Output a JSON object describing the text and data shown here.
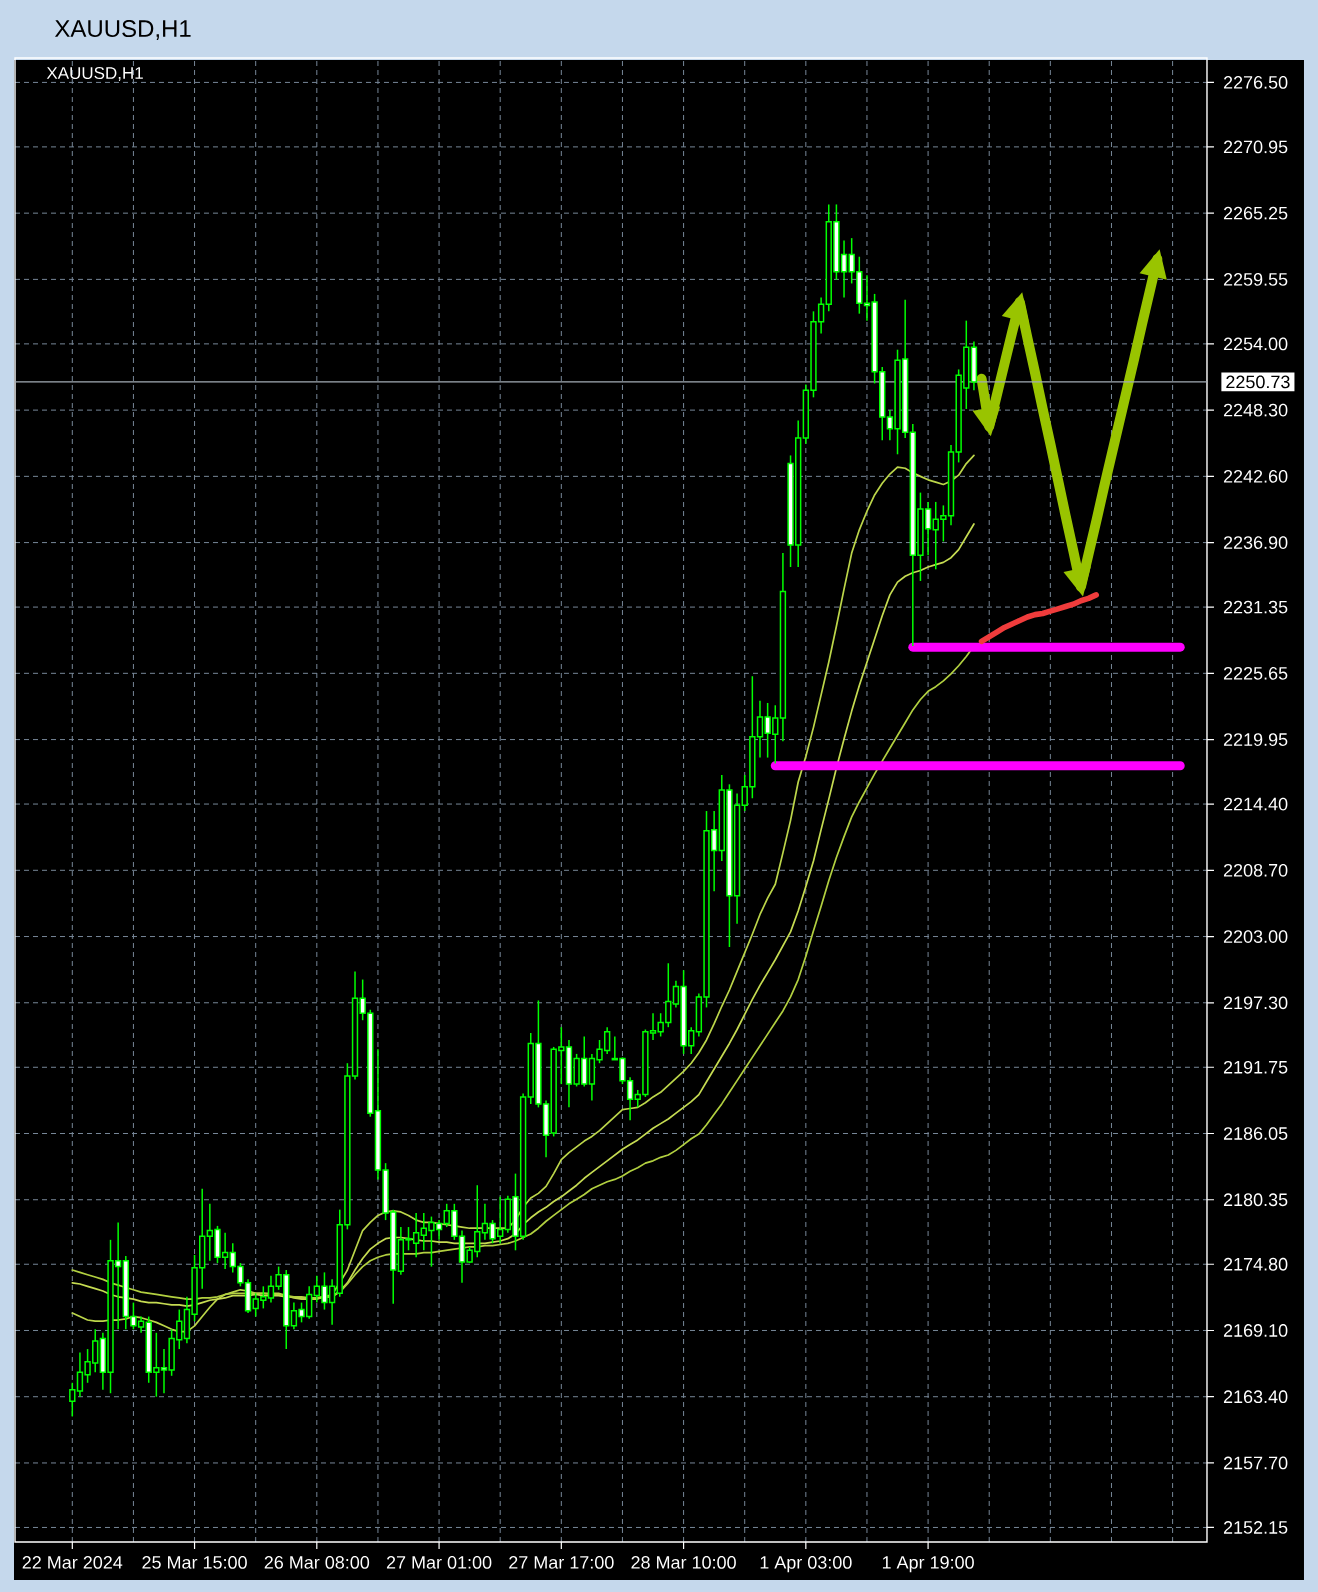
{
  "chart_data": {
    "type": "candlestick",
    "title": "XAUUSD,H1",
    "subtitle": "XAUUSD,H1",
    "color": "#00ff00",
    "categories": [
      "22 Mar 2024",
      null,
      null,
      null,
      null,
      null,
      null,
      null,
      null,
      null,
      null,
      null,
      null,
      null,
      null,
      null,
      "25 Mar 15:00",
      null,
      null,
      null,
      null,
      null,
      null,
      null,
      null,
      null,
      null,
      null,
      null,
      null,
      null,
      null,
      "26 Mar 08:00",
      null,
      null,
      null,
      null,
      null,
      null,
      null,
      null,
      null,
      null,
      null,
      null,
      null,
      null,
      null,
      "27 Mar 01:00",
      null,
      null,
      null,
      null,
      null,
      null,
      null,
      null,
      null,
      null,
      null,
      null,
      null,
      null,
      null,
      "27 Mar 17:00",
      null,
      null,
      null,
      null,
      null,
      null,
      null,
      null,
      null,
      null,
      null,
      null,
      null,
      null,
      null,
      "28 Mar 10:00",
      null,
      null,
      null,
      null,
      null,
      null,
      null,
      null,
      null,
      null,
      null,
      null,
      null,
      null,
      null,
      "1 Apr 03:00",
      null,
      null,
      null,
      null,
      null,
      null,
      null,
      null,
      null,
      null,
      null,
      null,
      null,
      null,
      null,
      "1 Apr 19:00",
      null,
      null,
      null,
      null,
      null,
      null,
      null,
      null,
      null,
      null,
      null,
      null,
      null,
      null,
      null,
      null,
      null,
      null,
      null,
      null,
      null,
      null,
      null,
      null,
      null,
      null,
      null,
      null,
      null,
      null,
      null,
      null,
      null,
      null,
      null,
      null
    ],
    "ohlc": [
      [
        2163.0,
        2164.6,
        2161.7,
        2164.0
      ],
      [
        2163.9,
        2167.2,
        2163.4,
        2165.5
      ],
      [
        2165.3,
        2167.5,
        2164.6,
        2166.4
      ],
      [
        2166.3,
        2169.2,
        2165.5,
        2168.2
      ],
      [
        2168.4,
        2168.9,
        2164.0,
        2165.5
      ],
      [
        2165.5,
        2176.9,
        2163.7,
        2175.1
      ],
      [
        2175.1,
        2178.4,
        2169.2,
        2174.6
      ],
      [
        2175.1,
        2175.5,
        2169.2,
        2170.3
      ],
      [
        2170.3,
        2171.5,
        2169.2,
        2169.5
      ],
      [
        2169.4,
        2170.3,
        2168.9,
        2169.9
      ],
      [
        2169.8,
        2170.3,
        2164.6,
        2165.5
      ],
      [
        2165.5,
        2168.9,
        2163.4,
        2165.9
      ],
      [
        2165.9,
        2167.5,
        2163.7,
        2165.7
      ],
      [
        2165.7,
        2169.2,
        2165.2,
        2168.4
      ],
      [
        2168.3,
        2170.9,
        2167.5,
        2169.9
      ],
      [
        2168.4,
        2172.0,
        2168.0,
        2170.9
      ],
      [
        2170.5,
        2175.6,
        2169.9,
        2174.5
      ],
      [
        2174.5,
        2181.3,
        2172.7,
        2177.2
      ],
      [
        2177.2,
        2180.0,
        2175.1,
        2177.7
      ],
      [
        2177.8,
        2178.1,
        2174.9,
        2175.4
      ],
      [
        2175.4,
        2177.5,
        2174.4,
        2175.8
      ],
      [
        2175.8,
        2176.6,
        2174.1,
        2174.6
      ],
      [
        2174.6,
        2174.9,
        2172.9,
        2173.2
      ],
      [
        2173.2,
        2173.5,
        2170.6,
        2170.8
      ],
      [
        2171.0,
        2172.3,
        2170.3,
        2171.8
      ],
      [
        2171.7,
        2172.9,
        2171.0,
        2172.0
      ],
      [
        2171.9,
        2173.8,
        2171.5,
        2172.9
      ],
      [
        2172.9,
        2174.6,
        2172.6,
        2173.9
      ],
      [
        2173.9,
        2174.3,
        2167.5,
        2169.5
      ],
      [
        2169.5,
        2171.5,
        2169.2,
        2170.8
      ],
      [
        2170.9,
        2171.5,
        2169.8,
        2170.3
      ],
      [
        2170.3,
        2172.9,
        2170.1,
        2172.2
      ],
      [
        2172.1,
        2173.8,
        2171.5,
        2172.9
      ],
      [
        2172.9,
        2174.1,
        2170.9,
        2171.5
      ],
      [
        2171.5,
        2173.5,
        2169.6,
        2172.9
      ],
      [
        2172.3,
        2179.5,
        2172.0,
        2178.2
      ],
      [
        2178.2,
        2192.1,
        2177.8,
        2191.0
      ],
      [
        2191.0,
        2200.0,
        2190.7,
        2197.7
      ],
      [
        2197.7,
        2199.3,
        2195.8,
        2196.4
      ],
      [
        2196.4,
        2196.7,
        2187.5,
        2187.8
      ],
      [
        2188.0,
        2193.3,
        2182.1,
        2182.9
      ],
      [
        2182.9,
        2183.5,
        2178.6,
        2179.2
      ],
      [
        2179.3,
        2179.5,
        2171.4,
        2174.3
      ],
      [
        2174.2,
        2178.0,
        2173.9,
        2176.9
      ],
      [
        2176.9,
        2178.0,
        2176.0,
        2177.0
      ],
      [
        2176.6,
        2179.2,
        2175.4,
        2177.5
      ],
      [
        2177.3,
        2179.2,
        2176.0,
        2177.9
      ],
      [
        2177.7,
        2178.9,
        2174.6,
        2178.4
      ],
      [
        2178.3,
        2178.6,
        2176.9,
        2177.8
      ],
      [
        2178.3,
        2180.0,
        2178.0,
        2179.4
      ],
      [
        2179.4,
        2180.0,
        2176.9,
        2177.2
      ],
      [
        2177.2,
        2177.7,
        2173.2,
        2175.0
      ],
      [
        2175.0,
        2176.3,
        2174.9,
        2176.0
      ],
      [
        2175.9,
        2181.6,
        2175.4,
        2177.6
      ],
      [
        2177.5,
        2180.0,
        2176.9,
        2178.3
      ],
      [
        2178.3,
        2178.6,
        2176.6,
        2177.0
      ],
      [
        2177.2,
        2180.6,
        2176.6,
        2177.8
      ],
      [
        2177.8,
        2180.7,
        2177.5,
        2180.4
      ],
      [
        2180.6,
        2182.6,
        2176.0,
        2177.2
      ],
      [
        2177.2,
        2189.5,
        2176.9,
        2189.2
      ],
      [
        2189.2,
        2194.7,
        2188.6,
        2193.8
      ],
      [
        2193.8,
        2197.5,
        2188.3,
        2188.6
      ],
      [
        2188.6,
        2188.9,
        2184.0,
        2185.9
      ],
      [
        2186.1,
        2193.5,
        2185.8,
        2193.3
      ],
      [
        2193.2,
        2195.2,
        2190.3,
        2193.5
      ],
      [
        2193.5,
        2194.1,
        2188.3,
        2190.3
      ],
      [
        2190.3,
        2192.9,
        2190.1,
        2192.5
      ],
      [
        2192.5,
        2194.4,
        2190.1,
        2190.3
      ],
      [
        2190.3,
        2192.9,
        2188.9,
        2192.5
      ],
      [
        2192.4,
        2194.1,
        2192.1,
        2193.3
      ],
      [
        2193.2,
        2195.2,
        2192.9,
        2194.8
      ],
      [
        2192.5,
        2194.4,
        2192.4,
        2192.4
      ],
      [
        2192.5,
        2192.6,
        2190.3,
        2190.6
      ],
      [
        2190.6,
        2190.9,
        2187.2,
        2189.0
      ],
      [
        2189.0,
        2189.8,
        2188.3,
        2189.4
      ],
      [
        2189.4,
        2195.0,
        2189.2,
        2194.8
      ],
      [
        2194.7,
        2196.4,
        2194.1,
        2194.9
      ],
      [
        2194.8,
        2196.4,
        2194.4,
        2195.6
      ],
      [
        2195.6,
        2200.7,
        2195.2,
        2197.4
      ],
      [
        2197.2,
        2199.2,
        2196.9,
        2198.7
      ],
      [
        2198.7,
        2200.1,
        2192.9,
        2193.6
      ],
      [
        2193.6,
        2195.2,
        2192.9,
        2194.9
      ],
      [
        2194.8,
        2198.1,
        2194.4,
        2197.8
      ],
      [
        2197.8,
        2213.8,
        2196.9,
        2212.1
      ],
      [
        2212.2,
        2213.8,
        2206.9,
        2210.4
      ],
      [
        2210.4,
        2216.9,
        2209.5,
        2215.6
      ],
      [
        2215.6,
        2216.1,
        2202.1,
        2206.5
      ],
      [
        2206.5,
        2215.3,
        2204.1,
        2214.3
      ],
      [
        2214.3,
        2216.9,
        2213.8,
        2215.9
      ],
      [
        2215.9,
        2225.4,
        2214.9,
        2220.2
      ],
      [
        2220.2,
        2223.3,
        2218.4,
        2221.9
      ],
      [
        2221.9,
        2223.1,
        2218.4,
        2220.5
      ],
      [
        2220.4,
        2222.9,
        2217.9,
        2221.8
      ],
      [
        2221.8,
        2236.0,
        2219.8,
        2232.7
      ],
      [
        2243.7,
        2244.4,
        2234.8,
        2236.7
      ],
      [
        2236.7,
        2247.4,
        2234.8,
        2245.9
      ],
      [
        2245.9,
        2250.5,
        2245.4,
        2250.0
      ],
      [
        2250.0,
        2256.8,
        2249.4,
        2255.9
      ],
      [
        2255.9,
        2258.0,
        2254.9,
        2257.4
      ],
      [
        2257.4,
        2266.0,
        2256.8,
        2264.5
      ],
      [
        2264.5,
        2266.0,
        2259.5,
        2260.2
      ],
      [
        2261.7,
        2262.9,
        2258.0,
        2260.2
      ],
      [
        2261.7,
        2263.1,
        2259.2,
        2260.2
      ],
      [
        2260.2,
        2261.5,
        2256.6,
        2257.5
      ],
      [
        2257.5,
        2259.9,
        2256.0,
        2257.3
      ],
      [
        2257.6,
        2258.3,
        2250.6,
        2251.6
      ],
      [
        2251.6,
        2252.0,
        2245.7,
        2247.7
      ],
      [
        2247.7,
        2248.3,
        2245.7,
        2246.7
      ],
      [
        2246.7,
        2253.5,
        2244.5,
        2252.6
      ],
      [
        2252.7,
        2257.8,
        2245.9,
        2246.4
      ],
      [
        2246.4,
        2247.1,
        2228.0,
        2235.8
      ],
      [
        2235.8,
        2241.2,
        2233.6,
        2239.8
      ],
      [
        2239.8,
        2240.4,
        2235.8,
        2238.1
      ],
      [
        2238.0,
        2240.4,
        2234.6,
        2238.9
      ],
      [
        2238.9,
        2240.1,
        2237.0,
        2239.2
      ],
      [
        2239.2,
        2245.3,
        2238.4,
        2244.7
      ],
      [
        2244.7,
        2251.8,
        2243.8,
        2251.3
      ],
      [
        2250.2,
        2256.0,
        2248.4,
        2253.7
      ],
      [
        2253.7,
        2254.2,
        2250.0,
        2250.73
      ],
      null,
      null,
      null,
      null,
      null,
      null,
      null,
      null,
      null,
      null,
      null,
      null,
      null,
      null,
      null,
      null,
      null,
      null,
      null,
      null,
      null,
      null,
      null,
      null,
      null,
      null,
      null,
      null,
      null,
      null
    ],
    "series": [
      {
        "type": "line",
        "color": "#bcd64a",
        "values": [
          2170.6,
          2170.3,
          2170.0,
          2169.9,
          2169.9,
          2170.0,
          2170.0,
          2170.1,
          2170.3,
          2170.2,
          2170.0,
          2169.8,
          2169.5,
          2169.2,
          2169.0,
          2169.0,
          2169.5,
          2170.3,
          2171.1,
          2171.8,
          2172.2,
          2172.4,
          2172.6,
          2172.5,
          2172.3,
          2172.3,
          2172.3,
          2172.3,
          2172.1,
          2171.9,
          2171.8,
          2171.8,
          2171.8,
          2172.0,
          2172.2,
          2173.2,
          2174.3,
          2176.0,
          2177.7,
          2178.4,
          2179.0,
          2179.3,
          2179.4,
          2179.3,
          2179.0,
          2178.6,
          2178.4,
          2178.4,
          2178.3,
          2178.2,
          2178.1,
          2178.0,
          2177.9,
          2177.9,
          2177.9,
          2177.9,
          2177.9,
          2177.9,
          2178.6,
          2179.7,
          2180.5,
          2180.9,
          2181.5,
          2182.6,
          2183.8,
          2184.4,
          2184.9,
          2185.4,
          2185.8,
          2186.3,
          2186.9,
          2187.5,
          2188.1,
          2188.2,
          2188.3,
          2188.7,
          2189.2,
          2189.6,
          2190.2,
          2190.8,
          2191.4,
          2192.1,
          2193.0,
          2194.1,
          2195.5,
          2197.0,
          2198.4,
          2200.0,
          2201.6,
          2203.2,
          2204.9,
          2206.3,
          2207.5,
          2210.2,
          2213.0,
          2216.3,
          2218.5,
          2221.0,
          2223.8,
          2226.6,
          2229.7,
          2232.9,
          2236.0,
          2238.0,
          2239.6,
          2241.0,
          2242.0,
          2242.8,
          2243.4,
          2243.3,
          2242.9,
          2242.6,
          2242.3,
          2242.1,
          2241.9,
          2242.2,
          2242.7,
          2243.7,
          2244.4,
          null,
          null,
          null,
          null,
          null,
          null,
          null,
          null,
          null,
          null,
          null,
          null,
          null,
          null,
          null,
          null,
          null,
          null,
          null,
          null,
          null,
          null,
          null,
          null,
          null,
          null,
          null,
          null,
          null,
          null
        ]
      },
      {
        "type": "line",
        "color": "#c6dc52",
        "values": [
          2173.2,
          2173.1,
          2172.9,
          2172.7,
          2172.5,
          2172.2,
          2172.0,
          2171.9,
          2171.8,
          2171.6,
          2171.5,
          2171.5,
          2171.4,
          2171.3,
          2171.3,
          2171.2,
          2171.3,
          2171.5,
          2171.7,
          2171.8,
          2171.9,
          2172.1,
          2172.1,
          2172.1,
          2172.2,
          2172.1,
          2172.1,
          2172.1,
          2172.0,
          2172.0,
          2171.9,
          2171.9,
          2171.9,
          2172.0,
          2172.0,
          2172.5,
          2173.2,
          2174.3,
          2175.3,
          2176.1,
          2176.6,
          2177.0,
          2177.1,
          2177.1,
          2177.0,
          2176.9,
          2176.8,
          2176.8,
          2176.7,
          2176.7,
          2176.6,
          2176.6,
          2176.6,
          2176.6,
          2176.6,
          2176.7,
          2176.8,
          2177.0,
          2177.4,
          2178.2,
          2178.8,
          2179.3,
          2179.7,
          2180.2,
          2180.6,
          2181.1,
          2181.6,
          2182.2,
          2182.7,
          2183.2,
          2183.7,
          2184.2,
          2184.7,
          2185.1,
          2185.5,
          2186.0,
          2186.5,
          2186.9,
          2187.3,
          2187.8,
          2188.3,
          2188.8,
          2189.4,
          2190.5,
          2191.6,
          2192.7,
          2193.8,
          2195.0,
          2196.3,
          2197.6,
          2198.8,
          2199.9,
          2201.0,
          2202.2,
          2203.4,
          2205.2,
          2207.3,
          2209.5,
          2212.2,
          2214.8,
          2217.5,
          2220.0,
          2222.4,
          2224.6,
          2226.6,
          2228.6,
          2230.6,
          2232.4,
          2233.5,
          2234.0,
          2234.3,
          2234.5,
          2234.8,
          2235.0,
          2235.2,
          2235.6,
          2236.3,
          2237.4,
          2238.5,
          null,
          null,
          null,
          null,
          null,
          null,
          null,
          null,
          null,
          null,
          null,
          null,
          null,
          null,
          null,
          null,
          null,
          null,
          null,
          null,
          null,
          null,
          null,
          null,
          null,
          null,
          null,
          null,
          null,
          null
        ]
      },
      {
        "type": "line",
        "color": "#b2d040",
        "values": [
          2174.3,
          2174.1,
          2173.9,
          2173.7,
          2173.5,
          2173.2,
          2173.0,
          2172.8,
          2172.6,
          2172.4,
          2172.3,
          2172.2,
          2172.1,
          2172.0,
          2171.9,
          2171.8,
          2171.8,
          2171.9,
          2171.9,
          2172.0,
          2172.2,
          2172.3,
          2172.3,
          2172.3,
          2172.3,
          2172.3,
          2172.2,
          2172.2,
          2172.1,
          2172.0,
          2172.0,
          2171.9,
          2171.9,
          2172.0,
          2172.0,
          2172.4,
          2173.1,
          2173.9,
          2174.6,
          2175.1,
          2175.4,
          2175.6,
          2175.7,
          2175.7,
          2175.7,
          2175.7,
          2175.8,
          2175.8,
          2175.9,
          2176.0,
          2176.1,
          2176.2,
          2176.3,
          2176.3,
          2176.4,
          2176.4,
          2176.5,
          2176.6,
          2176.8,
          2177.1,
          2177.4,
          2177.9,
          2178.5,
          2179.0,
          2179.5,
          2180.0,
          2180.4,
          2180.8,
          2181.3,
          2181.6,
          2181.9,
          2182.1,
          2182.4,
          2182.8,
          2183.1,
          2183.5,
          2183.7,
          2184.0,
          2184.2,
          2184.6,
          2185.1,
          2185.6,
          2186.0,
          2186.8,
          2187.7,
          2188.6,
          2189.6,
          2190.6,
          2191.6,
          2192.6,
          2193.6,
          2194.6,
          2195.6,
          2196.6,
          2197.8,
          2199.3,
          2201.3,
          2203.5,
          2205.6,
          2207.8,
          2209.8,
          2211.6,
          2213.3,
          2214.6,
          2215.8,
          2217.0,
          2218.1,
          2219.2,
          2220.3,
          2221.4,
          2222.5,
          2223.4,
          2224.1,
          2224.5,
          2225.0,
          2225.6,
          2226.3,
          2227.1,
          2228.0,
          null,
          null,
          null,
          null,
          null,
          null,
          null,
          null,
          null,
          null,
          null,
          null,
          null,
          null,
          null,
          null,
          null,
          null,
          null,
          null,
          null,
          null,
          null,
          null,
          null,
          null,
          null,
          null,
          null,
          null
        ]
      },
      {
        "type": "line",
        "color": "#ff00ff",
        "values": [
          null,
          null,
          null,
          null,
          null,
          null,
          null,
          null,
          null,
          null,
          null,
          null,
          null,
          null,
          null,
          null,
          null,
          null,
          null,
          null,
          null,
          null,
          null,
          null,
          null,
          null,
          null,
          null,
          null,
          null,
          null,
          null,
          null,
          null,
          null,
          null,
          null,
          null,
          null,
          null,
          null,
          null,
          null,
          null,
          null,
          null,
          null,
          null,
          null,
          null,
          null,
          null,
          null,
          null,
          null,
          null,
          null,
          null,
          null,
          null,
          null,
          null,
          null,
          null,
          null,
          null,
          null,
          null,
          null,
          null,
          null,
          null,
          null,
          null,
          null,
          null,
          null,
          null,
          null,
          null,
          null,
          null,
          null,
          null,
          null,
          null,
          null,
          null,
          null,
          null,
          null,
          null,
          null,
          null,
          null,
          null,
          null,
          null,
          null,
          null,
          null,
          null,
          null,
          null,
          null,
          null,
          null,
          null,
          null,
          null,
          2227.9,
          2227.9,
          2227.9,
          2227.9,
          2227.9,
          2227.9,
          2227.9,
          2227.9,
          2227.9,
          2227.9,
          2227.9,
          2227.9,
          2227.9,
          2227.9,
          2227.9,
          2227.9,
          2227.9,
          2227.9,
          2227.9,
          2227.9,
          2227.9,
          2227.9,
          2227.9,
          2227.9,
          2227.9,
          2227.9,
          2227.9,
          2227.9,
          2227.9,
          2227.9,
          2227.9,
          2227.9,
          2227.9,
          2227.9,
          2227.9,
          2227.9,
          null,
          null,
          null
        ]
      },
      {
        "type": "line",
        "color": "#ff00ff",
        "values": [
          null,
          null,
          null,
          null,
          null,
          null,
          null,
          null,
          null,
          null,
          null,
          null,
          null,
          null,
          null,
          null,
          null,
          null,
          null,
          null,
          null,
          null,
          null,
          null,
          null,
          null,
          null,
          null,
          null,
          null,
          null,
          null,
          null,
          null,
          null,
          null,
          null,
          null,
          null,
          null,
          null,
          null,
          null,
          null,
          null,
          null,
          null,
          null,
          null,
          null,
          null,
          null,
          null,
          null,
          null,
          null,
          null,
          null,
          null,
          null,
          null,
          null,
          null,
          null,
          null,
          null,
          null,
          null,
          null,
          null,
          null,
          null,
          null,
          null,
          null,
          null,
          null,
          null,
          null,
          null,
          null,
          null,
          null,
          null,
          null,
          null,
          null,
          null,
          null,
          null,
          null,
          null,
          2217.7,
          2217.7,
          2217.7,
          2217.7,
          2217.7,
          2217.7,
          2217.7,
          2217.7,
          2217.7,
          2217.7,
          2217.7,
          2217.7,
          2217.7,
          2217.7,
          2217.7,
          2217.7,
          2217.7,
          2217.7,
          2217.7,
          2217.7,
          2217.7,
          2217.7,
          2217.7,
          2217.7,
          2217.7,
          2217.7,
          2217.7,
          2217.7,
          2217.7,
          2217.7,
          2217.7,
          2217.7,
          2217.7,
          2217.7,
          2217.7,
          2217.7,
          2217.7,
          2217.7,
          2217.7,
          2217.7,
          2217.7,
          2217.7,
          2217.7,
          2217.7,
          2217.7,
          2217.7,
          2217.7,
          2217.7,
          2217.7,
          2217.7,
          2217.7,
          2217.7,
          2217.7,
          2217.7,
          null,
          null,
          null
        ]
      },
      {
        "type": "line",
        "color": "#f03c3c",
        "values": [
          null,
          null,
          null,
          null,
          null,
          null,
          null,
          null,
          null,
          null,
          null,
          null,
          null,
          null,
          null,
          null,
          null,
          null,
          null,
          null,
          null,
          null,
          null,
          null,
          null,
          null,
          null,
          null,
          null,
          null,
          null,
          null,
          null,
          null,
          null,
          null,
          null,
          null,
          null,
          null,
          null,
          null,
          null,
          null,
          null,
          null,
          null,
          null,
          null,
          null,
          null,
          null,
          null,
          null,
          null,
          null,
          null,
          null,
          null,
          null,
          null,
          null,
          null,
          null,
          null,
          null,
          null,
          null,
          null,
          null,
          null,
          null,
          null,
          null,
          null,
          null,
          null,
          null,
          null,
          null,
          null,
          null,
          null,
          null,
          null,
          null,
          null,
          null,
          null,
          null,
          null,
          null,
          null,
          null,
          null,
          null,
          null,
          null,
          null,
          null,
          null,
          null,
          null,
          null,
          null,
          null,
          null,
          null,
          null,
          null,
          null,
          null,
          null,
          null,
          null,
          null,
          null,
          null,
          null,
          2228.4,
          2228.8,
          2229.2,
          2229.6,
          2229.9,
          2230.2,
          2230.5,
          2230.7,
          2230.8,
          2231.0,
          2231.2,
          2231.4,
          2231.6,
          2231.9,
          2232.1,
          2232.4,
          null,
          null,
          null,
          null,
          null,
          null,
          null,
          null,
          null,
          null,
          null,
          null,
          null,
          null
        ]
      },
      {
        "type": "line",
        "color": "#99c400",
        "values": [
          null,
          null,
          null,
          null,
          null,
          null,
          null,
          null,
          null,
          null,
          null,
          null,
          null,
          null,
          null,
          null,
          null,
          null,
          null,
          null,
          null,
          null,
          null,
          null,
          null,
          null,
          null,
          null,
          null,
          null,
          null,
          null,
          null,
          null,
          null,
          null,
          null,
          null,
          null,
          null,
          null,
          null,
          null,
          null,
          null,
          null,
          null,
          null,
          null,
          null,
          null,
          null,
          null,
          null,
          null,
          null,
          null,
          null,
          null,
          null,
          null,
          null,
          null,
          null,
          null,
          null,
          null,
          null,
          null,
          null,
          null,
          null,
          null,
          null,
          null,
          null,
          null,
          null,
          null,
          null,
          null,
          null,
          null,
          null,
          null,
          null,
          null,
          null,
          null,
          null,
          null,
          null,
          null,
          null,
          null,
          null,
          null,
          null,
          null,
          null,
          null,
          null,
          null,
          null,
          null,
          null,
          null,
          null,
          null,
          null,
          null,
          null,
          null,
          null,
          null,
          null,
          null,
          null,
          null,
          2251.0,
          2246.9,
          2249.6,
          2252.3,
          2255.0,
          2257.6,
          2254.5,
          2251.5,
          2248.4,
          2245.4,
          2242.3,
          2239.2,
          2236.2,
          2233.1,
          2235.9,
          2238.7,
          2241.6,
          2244.4,
          2247.2,
          2250.0,
          2252.8,
          2255.7,
          2258.5,
          2261.3,
          null,
          null,
          null,
          null,
          null,
          null
        ]
      }
    ],
    "ylim": [
      2150.9,
      2278.6
    ],
    "yticks": [
      {
        "value": 2276.5,
        "label": "2276.50"
      },
      {
        "value": 2270.95,
        "label": "2270.95"
      },
      {
        "value": 2265.25,
        "label": "2265.25"
      },
      {
        "value": 2259.55,
        "label": "2259.55"
      },
      {
        "value": 2254.0,
        "label": "2254.00"
      },
      {
        "value": 2248.3,
        "label": "2248.30"
      },
      {
        "value": 2242.6,
        "label": "2242.60"
      },
      {
        "value": 2236.9,
        "label": "2236.90"
      },
      {
        "value": 2231.35,
        "label": "2231.35"
      },
      {
        "value": 2225.65,
        "label": "2225.65"
      },
      {
        "value": 2219.95,
        "label": "2219.95"
      },
      {
        "value": 2214.4,
        "label": "2214.40"
      },
      {
        "value": 2208.7,
        "label": "2208.70"
      },
      {
        "value": 2203.0,
        "label": "2203.00"
      },
      {
        "value": 2197.3,
        "label": "2197.30"
      },
      {
        "value": 2191.75,
        "label": "2191.75"
      },
      {
        "value": 2186.05,
        "label": "2186.05"
      },
      {
        "value": 2180.35,
        "label": "2180.35"
      },
      {
        "value": 2174.8,
        "label": "2174.80"
      },
      {
        "value": 2169.1,
        "label": "2169.10"
      },
      {
        "value": 2163.4,
        "label": "2163.40"
      },
      {
        "value": 2157.7,
        "label": "2157.70"
      },
      {
        "value": 2152.15,
        "label": "2152.15"
      }
    ],
    "grid": true,
    "ref_lines": [
      {
        "axis": "y",
        "value": 2250.73,
        "label": "2250.73",
        "color": "#a3acb5"
      }
    ]
  }
}
